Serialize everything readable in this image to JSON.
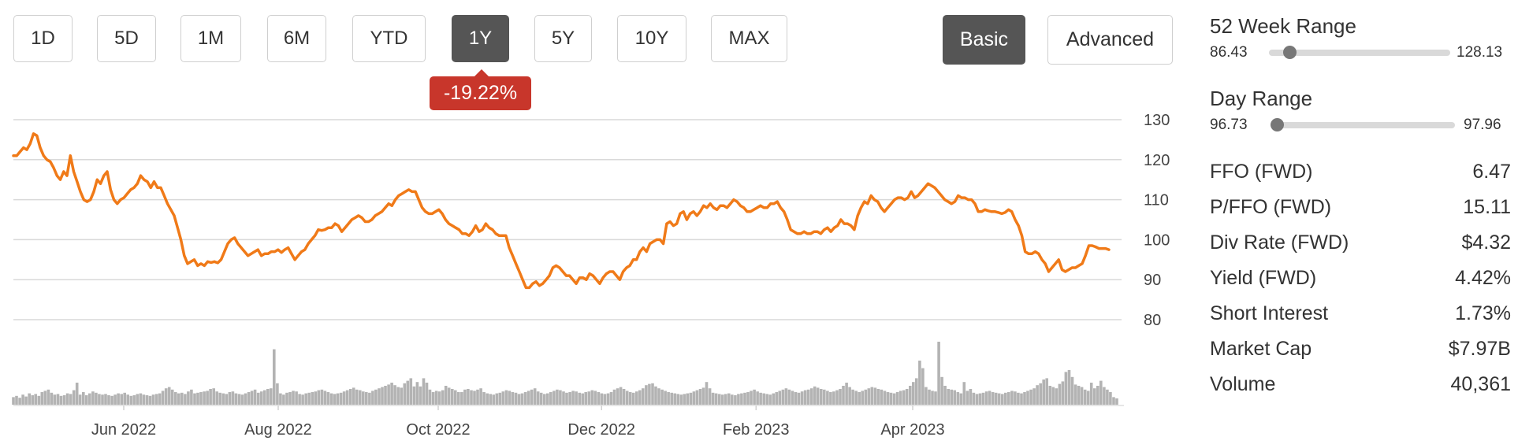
{
  "range_buttons": [
    "1D",
    "5D",
    "1M",
    "6M",
    "YTD",
    "1Y",
    "5Y",
    "10Y",
    "MAX"
  ],
  "selected_range": "1Y",
  "mode_buttons": {
    "basic": "Basic",
    "advanced": "Advanced",
    "selected": "Basic"
  },
  "change_badge": {
    "value": "-19.22%",
    "color": "#c8362b"
  },
  "colors": {
    "line": "#f07a18",
    "volume": "#b3b3b3",
    "grid": "#d9d9d9",
    "active_button": "#555555"
  },
  "week52_range": {
    "label": "52 Week Range",
    "low": "86.43",
    "high": "128.13",
    "position": 0.115
  },
  "day_range": {
    "label": "Day Range",
    "low": "96.73",
    "high": "97.96",
    "position": 0.0
  },
  "stats": [
    {
      "label": "FFO (FWD)",
      "value": "6.47"
    },
    {
      "label": "P/FFO (FWD)",
      "value": "15.11"
    },
    {
      "label": "Div Rate (FWD)",
      "value": "$4.32"
    },
    {
      "label": "Yield (FWD)",
      "value": "4.42%"
    },
    {
      "label": "Short Interest",
      "value": "1.73%"
    },
    {
      "label": "Market Cap",
      "value": "$7.97B"
    },
    {
      "label": "Volume",
      "value": "40,361"
    }
  ],
  "chart_data": {
    "type": "line",
    "x_ticks": [
      "Jun 2022",
      "Aug 2022",
      "Oct 2022",
      "Dec 2022",
      "Feb 2023",
      "Apr 2023"
    ],
    "y_ticks": [
      130,
      120,
      110,
      100,
      90,
      80
    ],
    "ylim": [
      80,
      130
    ],
    "grid": true,
    "price": [
      121,
      121,
      122,
      123,
      122.5,
      124,
      126.5,
      126,
      123,
      121,
      120,
      119.5,
      118,
      116,
      115,
      117,
      116,
      121,
      117,
      114.5,
      112,
      110,
      109.5,
      110,
      112,
      115,
      114,
      116,
      117,
      112.5,
      110,
      109,
      110,
      110.5,
      111.5,
      112.5,
      113,
      114,
      116,
      115,
      114.5,
      113,
      114.5,
      113,
      113,
      111,
      109,
      107.5,
      106,
      103,
      100,
      96,
      94,
      94.5,
      95,
      93.5,
      94,
      93.5,
      94.5,
      94.3,
      94.5,
      94.2,
      95,
      97,
      99,
      100,
      100.5,
      99,
      98,
      97,
      96,
      96.5,
      97,
      97.5,
      96,
      96.5,
      96.5,
      97,
      97,
      97.5,
      96.8,
      97.5,
      98,
      96.5,
      95,
      96,
      97,
      97.5,
      99,
      100,
      101,
      102.5,
      102.3,
      102.5,
      103,
      103,
      104,
      103.5,
      102,
      103,
      104,
      105,
      105.5,
      106,
      105.5,
      104.5,
      104.5,
      105,
      106,
      106.5,
      107,
      108,
      109,
      108.5,
      110,
      111,
      111.5,
      112,
      112.5,
      112,
      112,
      110,
      108,
      107,
      106.5,
      106.5,
      107,
      107.5,
      106.5,
      105,
      104,
      103.5,
      103,
      102.5,
      101.5,
      101.5,
      101,
      102,
      103.5,
      102,
      102.5,
      104,
      103,
      102.5,
      101.5,
      101,
      101,
      101,
      98,
      96,
      94,
      92,
      90,
      88,
      88,
      89,
      89.5,
      88.5,
      89,
      90,
      91,
      93,
      93.5,
      93,
      92,
      91,
      91,
      90,
      89,
      90.5,
      90.5,
      90,
      91.5,
      91,
      90,
      89,
      90.5,
      91.5,
      92,
      92,
      91,
      90,
      92,
      93,
      93.5,
      95,
      95,
      97,
      98,
      97,
      99,
      99.5,
      100,
      100,
      99,
      104,
      104.5,
      103.5,
      104,
      106.5,
      107,
      105,
      106.5,
      107,
      106,
      107,
      108.5,
      108,
      109,
      108,
      107.5,
      108.5,
      108.5,
      108,
      109,
      110,
      109.5,
      108.5,
      108,
      107,
      107,
      107.5,
      108,
      108.5,
      108,
      108,
      109,
      109,
      109.5,
      108,
      107,
      105,
      102.5,
      102,
      101.5,
      101.5,
      102,
      101.5,
      101.5,
      102,
      102,
      101.5,
      102.5,
      103,
      102,
      103,
      103.5,
      105,
      104,
      104,
      103.5,
      102.5,
      106,
      108,
      109.5,
      109,
      111,
      110,
      109.5,
      108,
      107,
      108,
      109,
      110,
      110.5,
      110.5,
      110,
      110.5,
      112,
      110.5,
      111,
      112,
      113,
      114,
      113.5,
      113,
      112,
      111,
      110,
      109.5,
      109,
      109.5,
      111,
      110.5,
      110.5,
      110,
      110,
      109,
      107,
      107,
      107.5,
      107.2,
      107,
      107,
      106.8,
      106.5,
      106.8,
      107.5,
      107,
      105,
      103.5,
      101,
      97,
      96.5,
      96.5,
      97,
      96.5,
      95,
      94,
      92,
      93,
      94,
      95,
      92.5,
      92,
      92.5,
      93,
      93,
      93.5,
      94,
      96,
      98.5,
      98.5,
      98.2,
      97.8,
      97.8,
      97.8,
      97.5
    ],
    "volume": [
      12,
      14,
      11,
      16,
      13,
      18,
      15,
      17,
      14,
      20,
      22,
      24,
      19,
      16,
      17,
      14,
      15,
      18,
      17,
      23,
      35,
      16,
      20,
      15,
      18,
      21,
      19,
      17,
      16,
      17,
      15,
      14,
      16,
      18,
      17,
      19,
      16,
      14,
      15,
      17,
      18,
      16,
      15,
      14,
      16,
      17,
      18,
      22,
      26,
      28,
      24,
      20,
      18,
      19,
      17,
      21,
      24,
      18,
      19,
      20,
      21,
      22,
      25,
      26,
      21,
      19,
      18,
      17,
      20,
      21,
      18,
      17,
      16,
      18,
      20,
      22,
      24,
      19,
      21,
      23,
      25,
      26,
      88,
      34,
      18,
      16,
      19,
      20,
      22,
      21,
      17,
      16,
      18,
      19,
      20,
      21,
      23,
      24,
      22,
      20,
      18,
      17,
      18,
      19,
      21,
      23,
      25,
      27,
      24,
      23,
      21,
      20,
      19,
      22,
      24,
      26,
      28,
      30,
      32,
      35,
      31,
      28,
      27,
      34,
      38,
      42,
      29,
      36,
      29,
      42,
      35,
      24,
      20,
      22,
      21,
      23,
      30,
      27,
      25,
      23,
      20,
      20,
      24,
      25,
      23,
      22,
      24,
      26,
      20,
      18,
      17,
      16,
      18,
      19,
      21,
      23,
      22,
      20,
      19,
      17,
      18,
      20,
      22,
      24,
      26,
      21,
      19,
      17,
      18,
      20,
      22,
      24,
      23,
      21,
      19,
      20,
      22,
      21,
      19,
      18,
      20,
      21,
      23,
      22,
      20,
      18,
      17,
      18,
      20,
      24,
      26,
      28,
      25,
      22,
      20,
      19,
      21,
      23,
      26,
      31,
      33,
      34,
      29,
      26,
      24,
      22,
      20,
      19,
      18,
      17,
      16,
      17,
      18,
      19,
      21,
      23,
      25,
      27,
      36,
      26,
      19,
      18,
      17,
      16,
      17,
      18,
      16,
      15,
      17,
      18,
      19,
      20,
      22,
      24,
      21,
      19,
      18,
      17,
      16,
      18,
      20,
      22,
      24,
      26,
      24,
      22,
      20,
      19,
      21,
      23,
      24,
      26,
      29,
      27,
      25,
      24,
      22,
      20,
      21,
      23,
      25,
      30,
      35,
      28,
      24,
      22,
      20,
      22,
      24,
      26,
      28,
      27,
      25,
      24,
      22,
      20,
      19,
      18,
      20,
      22,
      23,
      25,
      30,
      36,
      42,
      70,
      58,
      28,
      24,
      22,
      21,
      100,
      44,
      30,
      25,
      24,
      23,
      20,
      18,
      36,
      22,
      25,
      19,
      17,
      18,
      19,
      21,
      22,
      20,
      19,
      18,
      17,
      19,
      20,
      22,
      21,
      19,
      18,
      20,
      22,
      24,
      26,
      31,
      34,
      40,
      42,
      30,
      28,
      26,
      33,
      37,
      52,
      55,
      44,
      32,
      30,
      28,
      24,
      22,
      35,
      26,
      30,
      38,
      28,
      24,
      20,
      12,
      10
    ]
  }
}
